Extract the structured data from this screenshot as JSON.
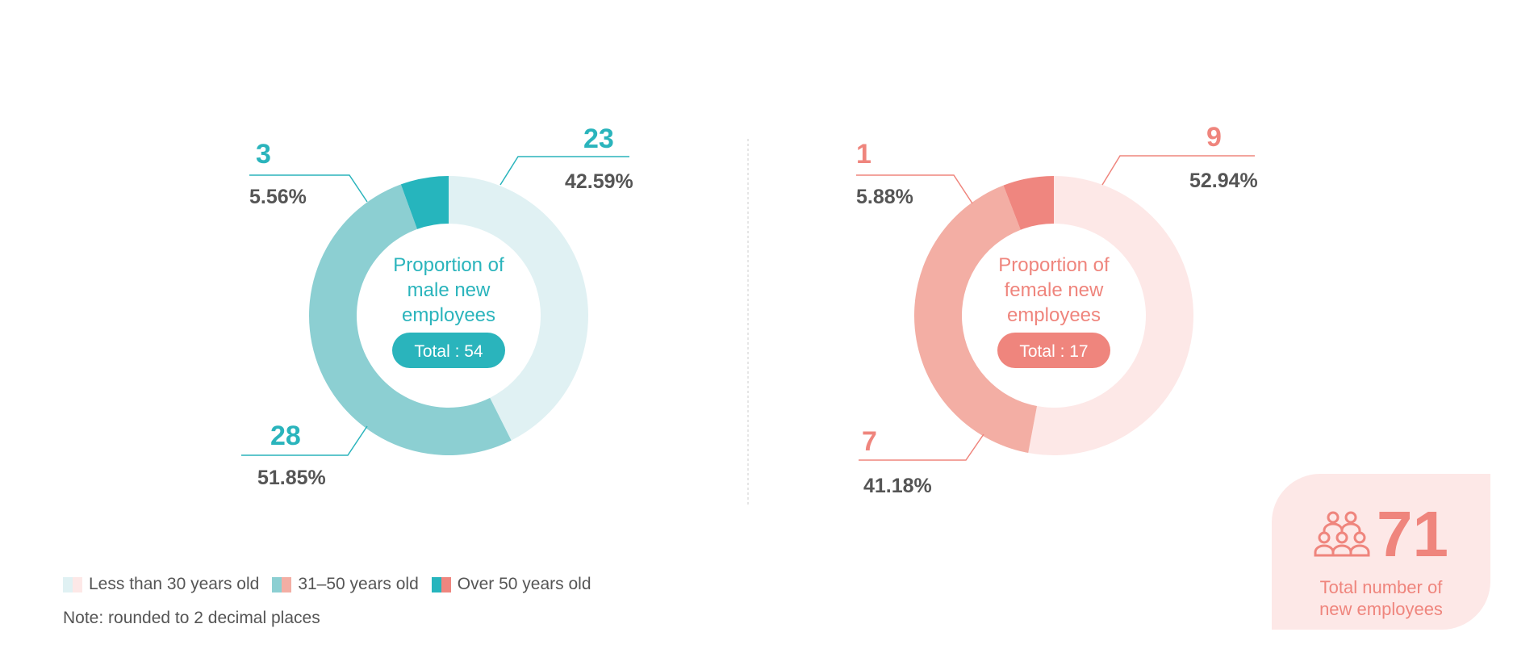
{
  "chart_data": [
    {
      "type": "pie",
      "donut": true,
      "center_title": "Proportion of male new employees",
      "center_lines": [
        "Proportion of",
        "male new",
        "employees"
      ],
      "total_label": "Total : 54",
      "categories": [
        "Less than 30 years old",
        "31–50 years old",
        "Over 50 years old"
      ],
      "values": [
        23,
        28,
        3
      ],
      "percent_labels": [
        "42.59%",
        "51.85%",
        "5.56%"
      ],
      "colors": [
        "#e0f1f3",
        "#8ccfd2",
        "#26b5bd"
      ],
      "accent": "#2ab4bc"
    },
    {
      "type": "pie",
      "donut": true,
      "center_title": "Proportion of female new employees",
      "center_lines": [
        "Proportion of",
        "female new",
        "employees"
      ],
      "total_label": "Total : 17",
      "categories": [
        "Less than 30 years old",
        "31–50 years old",
        "Over 50 years old"
      ],
      "values": [
        9,
        7,
        1
      ],
      "percent_labels": [
        "52.94%",
        "41.18%",
        "5.88%"
      ],
      "colors": [
        "#fde8e7",
        "#f3aea4",
        "#ef867f"
      ],
      "accent": "#ef857d"
    }
  ],
  "legend": {
    "items": [
      {
        "label": "Less than 30 years old",
        "colors": [
          "#e0f1f3",
          "#fde8e7"
        ]
      },
      {
        "label": "31–50 years old",
        "colors": [
          "#8ccfd2",
          "#f3aea4"
        ]
      },
      {
        "label": "Over 50 years old",
        "colors": [
          "#26b5bd",
          "#ef867f"
        ]
      }
    ],
    "placement": "bottom-left"
  },
  "note": "Note: rounded to 2 decimal places",
  "total": {
    "icon": "people-group-icon",
    "value": "71",
    "label_lines": [
      "Total number of",
      "new employees"
    ]
  }
}
